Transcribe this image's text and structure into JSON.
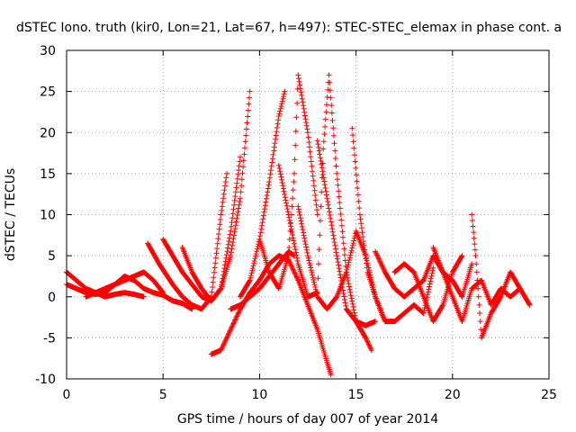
{
  "chart_data": {
    "type": "scatter",
    "title": "dSTEC Iono. truth (kir0, Lon=21, Lat=67, h=497): STEC-STEC_elemax in phase cont. a",
    "xlabel": "GPS time / hours of day 007 of year 2014",
    "ylabel": "dSTEC  / TECUs",
    "xlim": [
      0,
      25
    ],
    "ylim": [
      -10,
      30
    ],
    "x_ticks": [
      0,
      5,
      10,
      15,
      20,
      25
    ],
    "y_ticks": [
      -10,
      -5,
      0,
      5,
      10,
      15,
      20,
      25,
      30
    ],
    "grid": true,
    "marker": "plus",
    "color": "#ff0000",
    "series": [
      {
        "x": [
          0.0,
          0.5,
          1.0,
          1.5,
          2.0,
          2.5,
          3.0,
          3.5,
          4.0,
          4.5,
          5.0,
          5.5,
          6.0,
          6.5
        ],
        "values": [
          1.5,
          1.0,
          0.5,
          0.3,
          0.5,
          1.5,
          2.5,
          2.0,
          1.0,
          0.5,
          0.2,
          -0.5,
          -0.8,
          -1.5
        ]
      },
      {
        "x": [
          0.0,
          0.5,
          1.0,
          1.5,
          2.0,
          2.5,
          3.0,
          3.5,
          4.0
        ],
        "values": [
          3.0,
          2.0,
          1.0,
          0.5,
          0.0,
          0.3,
          0.5,
          0.3,
          0.0
        ]
      },
      {
        "x": [
          1.0,
          1.5,
          2.0,
          2.5,
          3.0,
          3.5,
          4.0,
          4.5,
          5.0
        ],
        "values": [
          0.0,
          0.5,
          1.0,
          1.5,
          2.0,
          2.5,
          3.0,
          2.0,
          0.5
        ]
      },
      {
        "x": [
          4.2,
          4.8,
          5.5,
          6.0,
          6.5,
          7.0,
          7.5,
          8.0,
          8.3
        ],
        "values": [
          6.5,
          4.0,
          1.5,
          0.0,
          -1.0,
          -1.5,
          0.0,
          10.0,
          15.0
        ]
      },
      {
        "x": [
          5.0,
          5.5,
          6.0,
          6.5,
          7.0,
          7.5,
          8.0,
          8.5,
          9.0,
          9.5
        ],
        "values": [
          7.0,
          5.0,
          3.0,
          1.5,
          0.0,
          -0.5,
          1.0,
          5.0,
          12.0,
          25.0
        ]
      },
      {
        "x": [
          6.0,
          6.5,
          7.0,
          7.5,
          8.0,
          8.5,
          9.0
        ],
        "values": [
          6.0,
          3.0,
          1.0,
          -0.5,
          1.0,
          8.0,
          17.0
        ]
      },
      {
        "x": [
          7.5,
          8.0,
          8.5,
          9.0,
          9.5,
          10.0,
          10.5,
          11.0,
          11.5,
          12.0,
          12.5,
          13.0,
          13.5,
          13.7
        ],
        "values": [
          -7.0,
          -6.5,
          -4.0,
          -1.5,
          0.5,
          2.0,
          4.0,
          5.0,
          4.5,
          2.0,
          -1.0,
          -4.0,
          -8.0,
          -9.5
        ]
      },
      {
        "x": [
          8.5,
          9.0,
          9.5,
          10.0,
          10.5,
          11.0,
          11.5,
          11.8
        ],
        "values": [
          -1.5,
          -1.0,
          0.0,
          1.0,
          2.5,
          4.0,
          5.5,
          5.0
        ]
      },
      {
        "x": [
          9.0,
          9.5,
          10.0,
          10.5,
          11.0,
          11.3
        ],
        "values": [
          0.0,
          2.0,
          7.0,
          14.0,
          22.0,
          25.0
        ]
      },
      {
        "x": [
          10.0,
          10.5,
          11.0,
          11.5,
          11.8,
          12.0,
          12.5,
          13.0
        ],
        "values": [
          7.0,
          3.0,
          1.0,
          5.0,
          15.0,
          27.0,
          20.0,
          10.0
        ]
      },
      {
        "x": [
          11.0,
          11.5,
          12.0,
          12.5,
          13.0,
          13.3,
          13.6,
          14.0,
          14.5,
          15.0,
          15.5,
          15.8
        ],
        "values": [
          16.0,
          10.0,
          4.0,
          0.0,
          0.5,
          18.0,
          27.0,
          15.0,
          3.0,
          -3.0,
          -5.0,
          -6.5
        ]
      },
      {
        "x": [
          12.0,
          12.5,
          13.0,
          13.5,
          14.0,
          14.5,
          15.0,
          15.5,
          16.0,
          16.5
        ],
        "values": [
          11.0,
          5.0,
          0.0,
          -1.5,
          0.0,
          3.0,
          8.0,
          5.0,
          0.0,
          -3.0
        ]
      },
      {
        "x": [
          13.0,
          13.5,
          14.0,
          14.5,
          15.0,
          15.5,
          16.0
        ],
        "values": [
          19.0,
          12.0,
          5.0,
          -1.5,
          -3.0,
          -3.5,
          -3.0
        ]
      },
      {
        "x": [
          14.8,
          15.2,
          15.6,
          16.0,
          16.5,
          17.0,
          17.5,
          18.0,
          18.5,
          19.0
        ],
        "values": [
          20.5,
          10.0,
          3.0,
          0.0,
          -3.0,
          -3.0,
          -2.0,
          -1.0,
          -2.0,
          3.5
        ]
      },
      {
        "x": [
          16.0,
          16.5,
          17.0,
          17.5,
          18.0,
          18.5,
          19.0,
          19.5,
          20.0,
          20.5,
          21.0
        ],
        "values": [
          5.5,
          3.0,
          1.0,
          0.0,
          1.0,
          2.0,
          5.0,
          3.0,
          2.0,
          0.0,
          4.0
        ]
      },
      {
        "x": [
          17.0,
          17.5,
          18.0,
          18.5,
          19.0,
          19.5,
          20.0,
          20.5
        ],
        "values": [
          3.0,
          4.0,
          3.0,
          0.0,
          -3.0,
          -1.0,
          3.0,
          5.0
        ]
      },
      {
        "x": [
          19.0,
          19.5,
          20.0,
          20.5,
          21.0,
          21.5,
          22.0,
          22.5,
          23.0,
          23.5,
          24.0
        ],
        "values": [
          6.0,
          3.0,
          0.0,
          -3.0,
          1.0,
          2.0,
          -1.0,
          1.0,
          0.0,
          1.0,
          -1.0
        ]
      },
      {
        "x": [
          21.0,
          21.2,
          21.5,
          22.0,
          22.5,
          23.0,
          23.5
        ],
        "values": [
          10.0,
          5.0,
          -5.0,
          -2.0,
          0.0,
          3.0,
          1.0
        ]
      }
    ]
  }
}
